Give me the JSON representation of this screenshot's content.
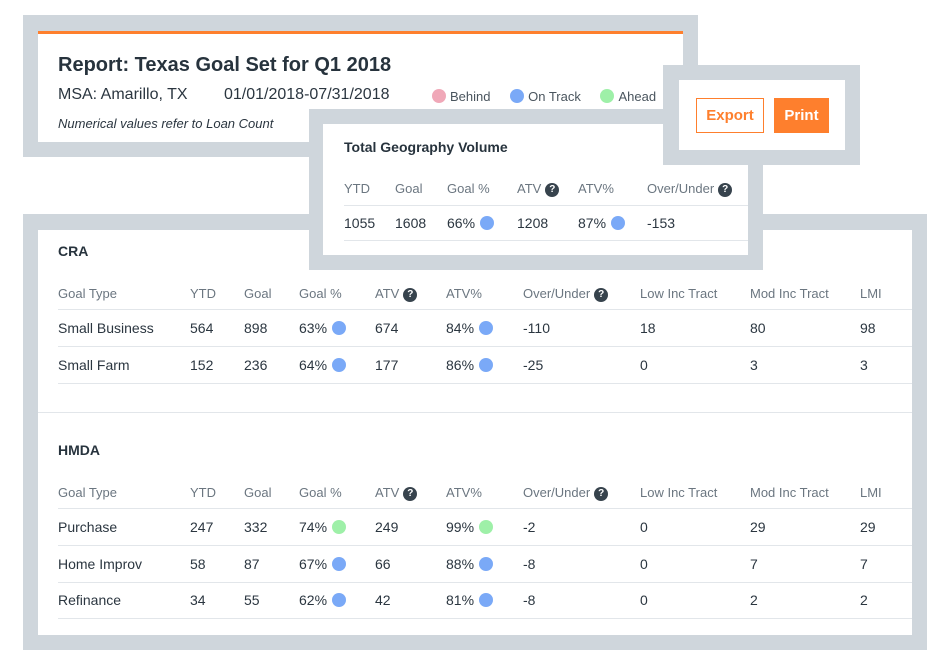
{
  "report": {
    "title": "Report: Texas Goal Set for Q1 2018",
    "msa": "MSA: Amarillo, TX",
    "date_range": "01/01/2018-07/31/2018",
    "note": "Numerical values refer to Loan Count"
  },
  "legend": [
    {
      "label": "Behind",
      "color": "#f0a8b8"
    },
    {
      "label": "On Track",
      "color": "#7aa9f7"
    },
    {
      "label": "Ahead",
      "color": "#9ef0a8"
    }
  ],
  "actions": {
    "export_label": "Export",
    "print_label": "Print"
  },
  "total": {
    "title": "Total Geography Volume",
    "headers": [
      "YTD",
      "Goal",
      "Goal %",
      "ATV",
      "ATV%",
      "Over/Under"
    ],
    "values": [
      "1055",
      "1608",
      "66%",
      "1208",
      "87%",
      "-153"
    ],
    "goal_status": "on-track",
    "atv_status": "on-track"
  },
  "headers": [
    "Goal Type",
    "YTD",
    "Goal",
    "Goal %",
    "ATV",
    "ATV%",
    "Over/Under",
    "Low Inc Tract",
    "Mod Inc Tract",
    "LMI"
  ],
  "sections": [
    {
      "title": "CRA",
      "rows": [
        {
          "cells": [
            "Small Business",
            "564",
            "898",
            "63%",
            "674",
            "84%",
            "-110",
            "18",
            "80",
            "98"
          ],
          "goal_status": "on-track",
          "atv_status": "on-track"
        },
        {
          "cells": [
            "Small Farm",
            "152",
            "236",
            "64%",
            "177",
            "86%",
            "-25",
            "0",
            "3",
            "3"
          ],
          "goal_status": "on-track",
          "atv_status": "on-track"
        }
      ]
    },
    {
      "title": "HMDA",
      "rows": [
        {
          "cells": [
            "Purchase",
            "247",
            "332",
            "74%",
            "249",
            "99%",
            "-2",
            "0",
            "29",
            "29"
          ],
          "goal_status": "ahead",
          "atv_status": "ahead"
        },
        {
          "cells": [
            "Home Improv",
            "58",
            "87",
            "67%",
            "66",
            "88%",
            "-8",
            "0",
            "7",
            "7"
          ],
          "goal_status": "on-track",
          "atv_status": "on-track"
        },
        {
          "cells": [
            "Refinance",
            "34",
            "55",
            "62%",
            "42",
            "81%",
            "-8",
            "0",
            "2",
            "2"
          ],
          "goal_status": "on-track",
          "atv_status": "on-track"
        }
      ]
    }
  ],
  "colors": {
    "accent": "#fe7f2d",
    "on-track": "#7aa9f7",
    "ahead": "#9ef0a8",
    "behind": "#f0a8b8",
    "panel": "#cfd6dc"
  }
}
